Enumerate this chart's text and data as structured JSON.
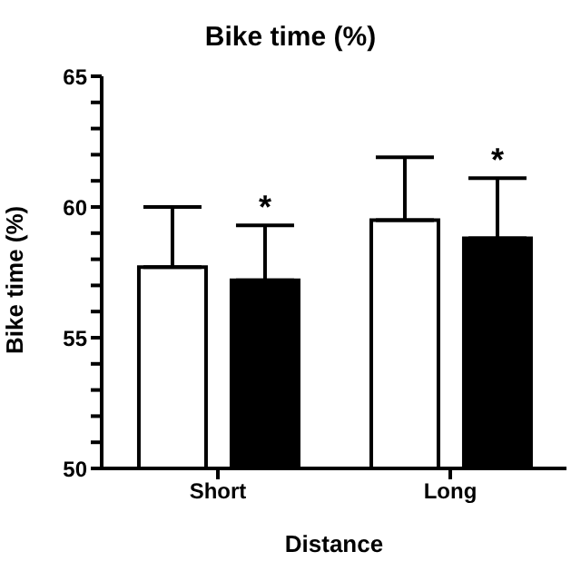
{
  "chart_data": {
    "type": "bar",
    "title": "Bike time (%)",
    "xlabel": "Distance",
    "ylabel": "Bike time (%)",
    "categories": [
      "Short",
      "Long"
    ],
    "series": [
      {
        "color": "#ffffff",
        "values": [
          57.7,
          59.5
        ],
        "errors": [
          [
            57.7,
            60.0
          ],
          [
            59.5,
            61.9
          ]
        ]
      },
      {
        "color": "#000000",
        "values": [
          57.2,
          58.8
        ],
        "errors": [
          [
            57.2,
            59.3
          ],
          [
            58.8,
            61.1
          ]
        ]
      }
    ],
    "ylim": [
      50,
      65
    ],
    "yticks": [
      50,
      {
        "value": 51,
        "label": null
      },
      {
        "value": 52,
        "label": null
      },
      {
        "value": 53,
        "label": null
      },
      {
        "value": 54,
        "label": null
      },
      55,
      {
        "value": 56,
        "label": null
      },
      {
        "value": 57,
        "label": null
      },
      {
        "value": 58,
        "label": null
      },
      {
        "value": 59,
        "label": null
      },
      60,
      {
        "value": 61,
        "label": null
      },
      {
        "value": 62,
        "label": null
      },
      {
        "value": 63,
        "label": null
      },
      {
        "value": 64,
        "label": null
      },
      65
    ],
    "annotations": [
      "*",
      "*"
    ],
    "grid": false,
    "legend": false
  }
}
